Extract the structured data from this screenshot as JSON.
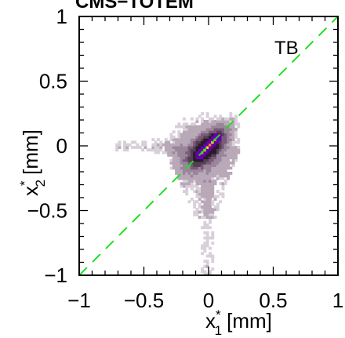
{
  "chart_data": {
    "type": "heatmap",
    "title": "CMS−TOTEM",
    "xlabel": "x",
    "xlabel_sup": "*",
    "xlabel_sub": "1",
    "xlabel_unit": "[mm]",
    "ylabel": "x",
    "ylabel_sup": "*",
    "ylabel_sub": "2",
    "ylabel_unit": "[mm]",
    "xlim": [
      -1,
      1
    ],
    "ylim": [
      -1,
      1
    ],
    "xticks": [
      -1,
      -0.5,
      0,
      0.5,
      1
    ],
    "yticks": [
      -1,
      -0.5,
      0,
      0.5,
      1
    ],
    "xtick_labels": [
      "−1",
      "−0.5",
      "0",
      "0.5",
      "1"
    ],
    "ytick_labels": [
      "−1",
      "−0.5",
      "0",
      "0.5",
      "1"
    ],
    "annotation": "TB",
    "reference_line": {
      "x": [
        -1,
        1
      ],
      "y": [
        -1,
        1
      ],
      "style": "dashed",
      "color": "#22dd22"
    },
    "density_clusters": [
      {
        "name": "core",
        "x_range": [
          -0.25,
          0.2
        ],
        "y_range": [
          -0.28,
          0.22
        ],
        "level": "high"
      },
      {
        "name": "left-wing",
        "x_range": [
          -0.7,
          -0.25
        ],
        "y_range": [
          -0.08,
          0.08
        ],
        "level": "low"
      },
      {
        "name": "lower-tail",
        "x_range": [
          -0.1,
          0.1
        ],
        "y_range": [
          -1.0,
          -0.3
        ],
        "level": "low"
      },
      {
        "name": "upper-right",
        "x_range": [
          0.1,
          0.3
        ],
        "y_range": [
          0.1,
          0.35
        ],
        "level": "medium"
      }
    ],
    "colors": {
      "low": "#d8d0d8",
      "mid": "#7a5a78",
      "high": "#2a1a2a",
      "peak1": "#6600aa",
      "peak2": "#ff8800",
      "peak3": "#ffee00",
      "line": "#22dd22"
    },
    "grid": false,
    "legend": "none"
  }
}
